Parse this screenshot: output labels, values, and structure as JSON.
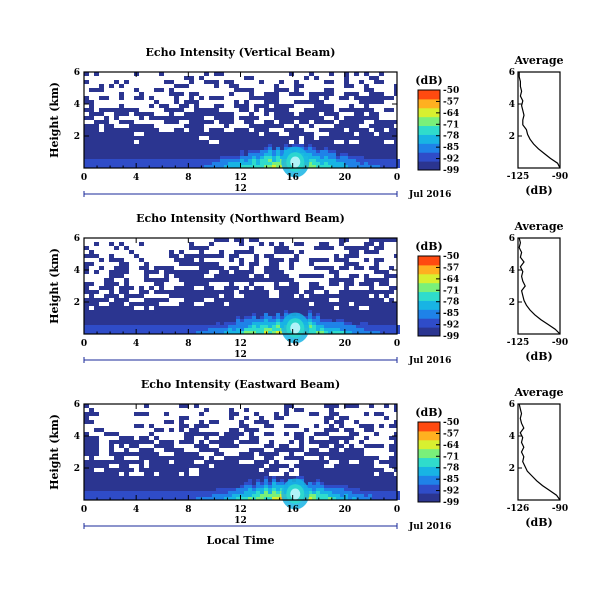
{
  "chart_data": [
    {
      "type": "heatmap",
      "title": "Echo Intensity (Vertical Beam)",
      "ylabel": "Height (km)",
      "x_ticks": [
        "0",
        "4",
        "8",
        "12",
        "16",
        "20",
        "0"
      ],
      "y_ticks": [
        "6",
        "4",
        "2"
      ],
      "xlim": [
        0,
        24
      ],
      "ylim": [
        0,
        6
      ],
      "date_marker": "12",
      "date_label": "Jul 2016",
      "colorbar": {
        "unit": "(dB)",
        "ticks": [
          "-50",
          "-57",
          "-64",
          "-71",
          "-78",
          "-85",
          "-92",
          "-99"
        ],
        "range": [
          -99,
          -50
        ]
      },
      "average_profile": {
        "title": "Average",
        "xlabel": "(dB)",
        "x_ticks": [
          "-125",
          "-90"
        ],
        "y_ticks": [
          "6",
          "4",
          "2"
        ],
        "xlim": [
          -125,
          -90
        ],
        "ylim": [
          0,
          6
        ],
        "height_km": [
          0.0,
          0.3,
          0.6,
          0.9,
          1.2,
          1.5,
          1.8,
          2.1,
          2.4,
          2.7,
          3.0,
          3.3,
          3.6,
          3.9,
          4.2,
          4.5,
          4.8,
          5.1,
          5.4,
          5.7,
          6.0
        ],
        "db": [
          -90,
          -92,
          -98,
          -103,
          -108,
          -112,
          -115,
          -117,
          -118,
          -121,
          -121,
          -120,
          -121,
          -122,
          -121,
          -123,
          -122,
          -123,
          -123,
          -124,
          -124
        ]
      }
    },
    {
      "type": "heatmap",
      "title": "Echo Intensity (Northward Beam)",
      "ylabel": "Height (km)",
      "x_ticks": [
        "0",
        "4",
        "8",
        "12",
        "16",
        "20",
        "0"
      ],
      "y_ticks": [
        "6",
        "4",
        "2"
      ],
      "xlim": [
        0,
        24
      ],
      "ylim": [
        0,
        6
      ],
      "date_marker": "12",
      "date_label": "Jul 2016",
      "colorbar": {
        "unit": "(dB)",
        "ticks": [
          "-50",
          "-57",
          "-64",
          "-71",
          "-78",
          "-85",
          "-92",
          "-99"
        ],
        "range": [
          -99,
          -50
        ]
      },
      "average_profile": {
        "title": "Average",
        "xlabel": "(dB)",
        "x_ticks": [
          "-125",
          "-90"
        ],
        "y_ticks": [
          "6",
          "4",
          "2"
        ],
        "xlim": [
          -125,
          -90
        ],
        "ylim": [
          0,
          6
        ],
        "height_km": [
          0.0,
          0.3,
          0.6,
          0.9,
          1.2,
          1.5,
          1.8,
          2.1,
          2.4,
          2.7,
          3.0,
          3.3,
          3.6,
          3.9,
          4.2,
          4.5,
          4.8,
          5.1,
          5.4,
          5.7,
          6.0
        ],
        "db": [
          -90,
          -94,
          -100,
          -106,
          -111,
          -115,
          -118,
          -120,
          -121,
          -122,
          -119,
          -121,
          -122,
          -121,
          -123,
          -120,
          -123,
          -122,
          -124,
          -123,
          -124
        ]
      }
    },
    {
      "type": "heatmap",
      "title": "Echo Intensity (Eastward Beam)",
      "ylabel": "Height (km)",
      "xlabel": "Local Time",
      "x_ticks": [
        "0",
        "4",
        "8",
        "12",
        "16",
        "20",
        "0"
      ],
      "y_ticks": [
        "6",
        "4",
        "2"
      ],
      "xlim": [
        0,
        24
      ],
      "ylim": [
        0,
        6
      ],
      "date_marker": "12",
      "date_label": "Jul 2016",
      "colorbar": {
        "unit": "(dB)",
        "ticks": [
          "-50",
          "-57",
          "-64",
          "-71",
          "-78",
          "-85",
          "-92",
          "-99"
        ],
        "range": [
          -99,
          -50
        ]
      },
      "average_profile": {
        "title": "Average",
        "xlabel": "(dB)",
        "x_ticks": [
          "-126",
          "-90"
        ],
        "y_ticks": [
          "6",
          "4",
          "2"
        ],
        "xlim": [
          -126,
          -90
        ],
        "ylim": [
          0,
          6
        ],
        "height_km": [
          0.0,
          0.3,
          0.6,
          0.9,
          1.2,
          1.5,
          1.8,
          2.1,
          2.4,
          2.7,
          3.0,
          3.3,
          3.6,
          3.9,
          4.2,
          4.5,
          4.8,
          5.1,
          5.4,
          5.7,
          6.0
        ],
        "db": [
          -90,
          -93,
          -99,
          -105,
          -110,
          -114,
          -118,
          -120,
          -122,
          -121,
          -123,
          -121,
          -123,
          -122,
          -124,
          -121,
          -123,
          -124,
          -123,
          -124,
          -125
        ]
      }
    }
  ],
  "colors": {
    "background": "#ffffff",
    "axis": "#000000",
    "fill_low": "#2b3590",
    "date_line": "#1a2a9a"
  },
  "colormap": [
    "#2b3590",
    "#2f4cc8",
    "#1f82e8",
    "#18b4e4",
    "#2fdccc",
    "#7af07a",
    "#d8f030",
    "#ffb020",
    "#ff4a10"
  ]
}
